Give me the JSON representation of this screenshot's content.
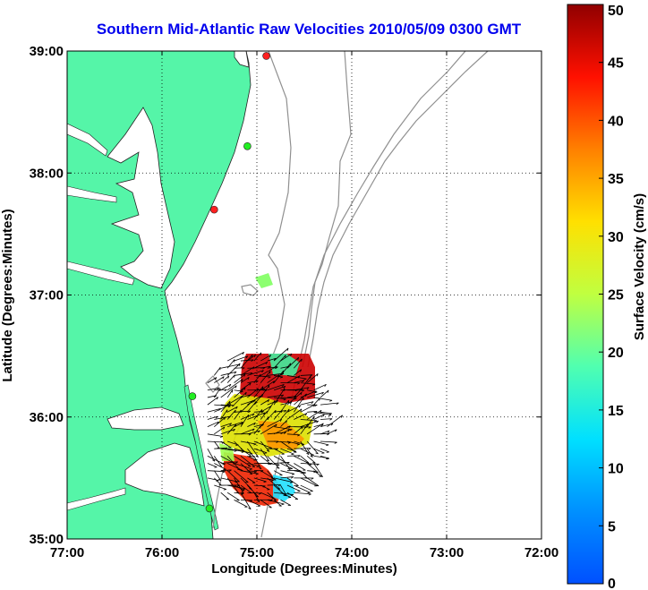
{
  "chart_data": {
    "type": "heatmap",
    "title": "Southern Mid-Atlantic Raw Velocities 2010/05/09 0300 GMT",
    "xlabel": "Longitude (Degrees:Minutes)",
    "ylabel": "Latitude (Degrees:Minutes)",
    "xlim": [
      -77,
      -72
    ],
    "ylim": [
      35,
      39
    ],
    "x_ticks": [
      {
        "value": -77,
        "label": "77:00"
      },
      {
        "value": -76,
        "label": "76:00"
      },
      {
        "value": -75,
        "label": "75:00"
      },
      {
        "value": -74,
        "label": "74:00"
      },
      {
        "value": -73,
        "label": "73:00"
      },
      {
        "value": -72,
        "label": "72:00"
      }
    ],
    "y_ticks": [
      {
        "value": 35,
        "label": "35:00"
      },
      {
        "value": 36,
        "label": "36:00"
      },
      {
        "value": 37,
        "label": "37:00"
      },
      {
        "value": 38,
        "label": "38:00"
      },
      {
        "value": 39,
        "label": "39:00"
      }
    ],
    "grid": true,
    "colorbar": {
      "label": "Surface Velocity (cm/s)",
      "min": 0,
      "max": 50,
      "ticks": [
        0,
        5,
        10,
        15,
        20,
        25,
        30,
        35,
        40,
        45,
        50
      ],
      "colormap": "jet"
    },
    "stations": [
      {
        "lon": -74.9,
        "lat": 38.96,
        "color": "#ff2020"
      },
      {
        "lon": -75.1,
        "lat": 38.22,
        "color": "#22ee22"
      },
      {
        "lon": -75.45,
        "lat": 37.7,
        "color": "#ff2020"
      },
      {
        "lon": -75.68,
        "lat": 36.17,
        "color": "#22ee22"
      },
      {
        "lon": -75.5,
        "lat": 35.25,
        "color": "#22ee22"
      }
    ],
    "velocity_field_extent": {
      "lon": [
        -75.6,
        -74.15
      ],
      "lat": [
        35.15,
        36.52
      ]
    },
    "colors": {
      "land": "#55f5a8",
      "water": "#ffffff",
      "bathymetry": "#909090",
      "title": "#0000ee"
    }
  }
}
